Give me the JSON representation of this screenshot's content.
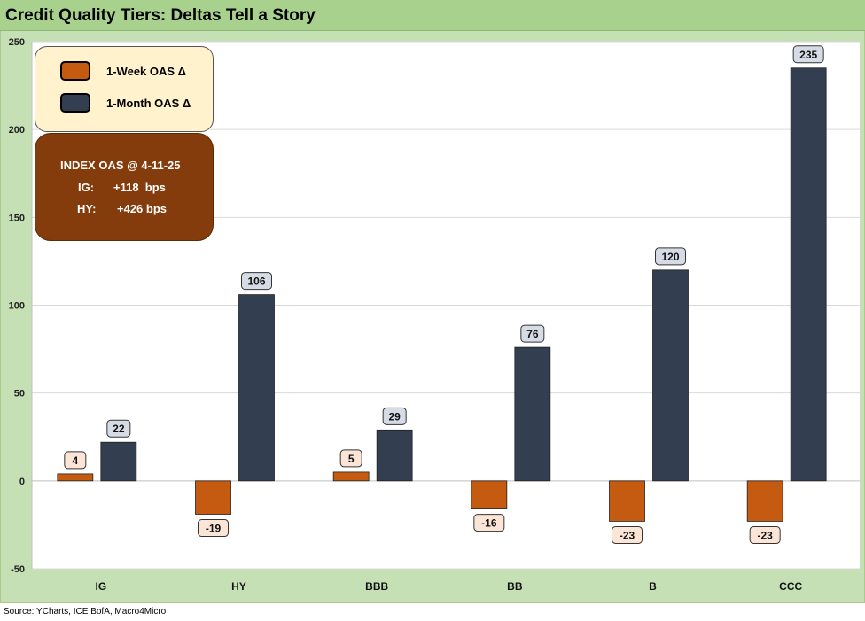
{
  "title": "Credit Quality Tiers: Deltas Tell a Story",
  "source": "Source: YCharts, ICE BofA, Macro4Micro",
  "colors": {
    "week": "#c55a11",
    "month": "#333f50",
    "week_label_bg": "#fbe5d6",
    "month_label_bg": "#d6dce5",
    "plot_bg": "#ffffff",
    "frame_bg": "#c5e0b4",
    "title_bg": "#a9d18e"
  },
  "legend": {
    "week_label": "1-Week OAS Δ",
    "month_label": "1-Month OAS Δ"
  },
  "index_box": {
    "title": "INDEX OAS @ 4-11-25",
    "ig_label": "IG:",
    "ig_value": "+118  bps",
    "hy_label": "HY:",
    "hy_value": "+426 bps"
  },
  "chart_data": {
    "type": "bar",
    "title": "Credit Quality Tiers: Deltas Tell a Story",
    "categories": [
      "IG",
      "HY",
      "BBB",
      "BB",
      "B",
      "CCC"
    ],
    "series": [
      {
        "name": "1-Week OAS Δ",
        "values": [
          4,
          -19,
          5,
          -16,
          -23,
          -23
        ]
      },
      {
        "name": "1-Month OAS Δ",
        "values": [
          22,
          106,
          29,
          76,
          120,
          235
        ]
      }
    ],
    "ylim": [
      -50,
      250
    ],
    "yticks": [
      -50,
      0,
      50,
      100,
      150,
      200,
      250
    ],
    "grid": true,
    "legend_position": "top-left",
    "xlabel": "",
    "ylabel": ""
  }
}
